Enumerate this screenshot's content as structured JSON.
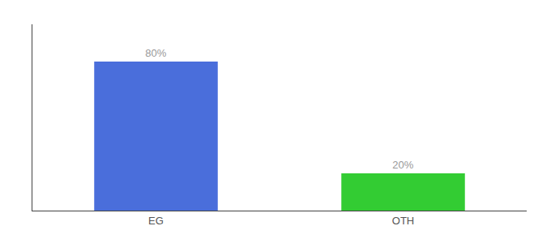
{
  "chart_data": {
    "type": "bar",
    "categories": [
      "EG",
      "OTH"
    ],
    "values": [
      80,
      20
    ],
    "value_labels": [
      "80%",
      "20%"
    ],
    "colors": [
      "#4a6edb",
      "#33cc33"
    ],
    "ylim": [
      0,
      100
    ],
    "data_labels": true,
    "tick_labels": "x",
    "grid": false
  }
}
